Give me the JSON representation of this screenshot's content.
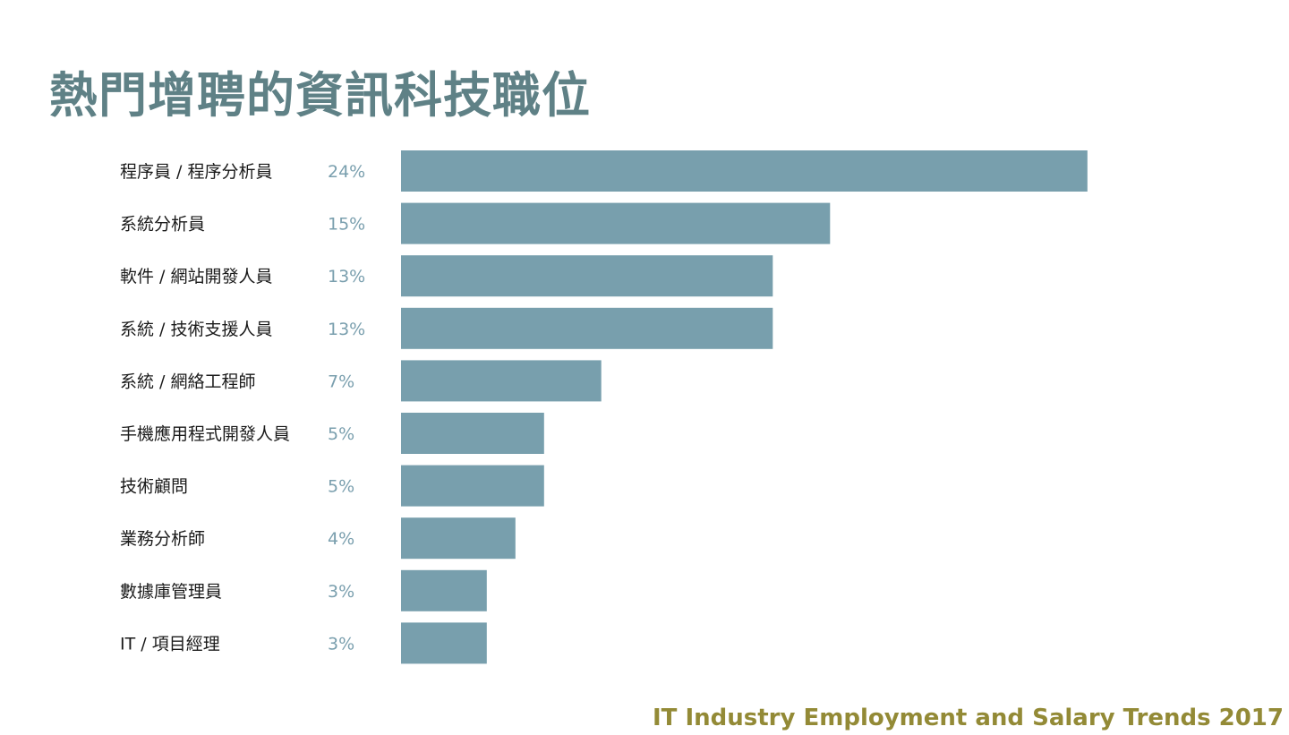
{
  "title": "熱門增聘的資訊科技職位",
  "footer": "IT Industry Employment and Salary Trends 2017",
  "chart_data": {
    "type": "bar",
    "orientation": "horizontal",
    "categories": [
      "程序員 / 程序分析員",
      "系統分析員",
      "軟件 / 網站開發人員",
      "系統 / 技術支援人員",
      "系統 / 網絡工程師",
      "手機應用程式開發人員",
      "技術顧問",
      "業務分析師",
      "數據庫管理員",
      "IT / 項目經理"
    ],
    "values": [
      24,
      15,
      13,
      13,
      7,
      5,
      5,
      4,
      3,
      3
    ],
    "value_labels": [
      "24%",
      "15%",
      "13%",
      "13%",
      "7%",
      "5%",
      "5%",
      "4%",
      "3%",
      "3%"
    ],
    "unit": "%",
    "title": "熱門增聘的資訊科技職位",
    "xlabel": "",
    "ylabel": "",
    "grid": false,
    "legend": "none",
    "bar_color": "#789fad"
  },
  "colors": {
    "title": "#5f8186",
    "bar": "#789fad",
    "value_label": "#7a9fae",
    "footer": "#938a36"
  }
}
